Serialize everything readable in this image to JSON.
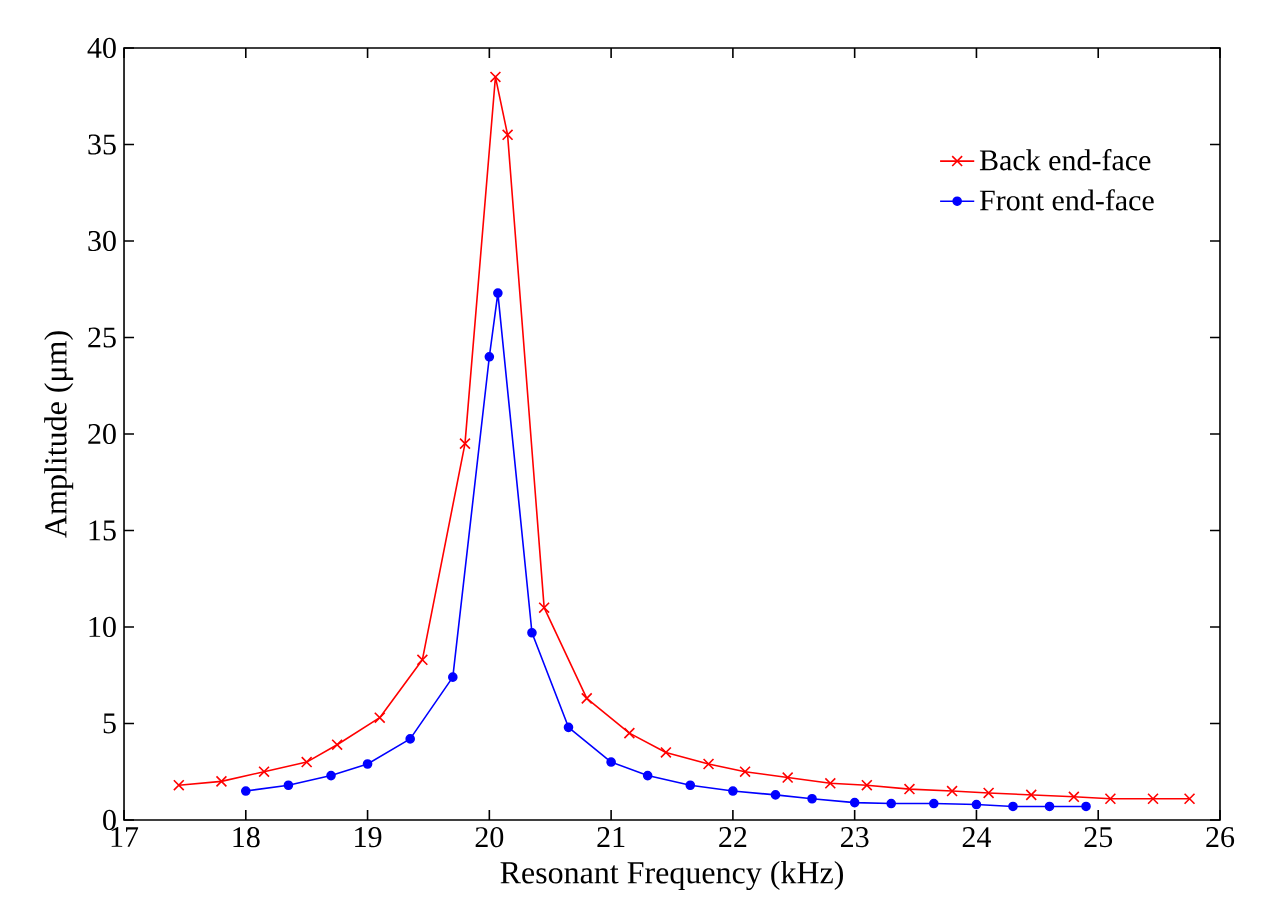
{
  "chart_data": {
    "type": "line",
    "xlabel": "Resonant Frequency (kHz)",
    "ylabel": "Amplitude (μm)",
    "xlim": [
      17,
      26
    ],
    "ylim": [
      0,
      40
    ],
    "xticks": [
      17,
      18,
      19,
      20,
      21,
      22,
      23,
      24,
      25,
      26
    ],
    "yticks": [
      0,
      5,
      10,
      15,
      20,
      25,
      30,
      35,
      40
    ],
    "grid": false,
    "legend": "top right",
    "series": [
      {
        "name": "Back end-face",
        "color": "#ff0000",
        "marker": "cross",
        "x": [
          17.45,
          17.8,
          18.15,
          18.5,
          18.75,
          19.1,
          19.45,
          19.8,
          20.05,
          20.15,
          20.45,
          20.8,
          21.15,
          21.45,
          21.8,
          22.1,
          22.45,
          22.8,
          23.1,
          23.45,
          23.8,
          24.1,
          24.45,
          24.8,
          25.1,
          25.45,
          25.75
        ],
        "values": [
          1.8,
          2.0,
          2.5,
          3.0,
          3.9,
          5.3,
          8.3,
          19.5,
          38.5,
          35.5,
          11,
          6.3,
          4.5,
          3.5,
          2.9,
          2.5,
          2.2,
          1.9,
          1.8,
          1.6,
          1.5,
          1.4,
          1.3,
          1.2,
          1.1,
          1.1,
          1.1
        ]
      },
      {
        "name": "Front end-face",
        "color": "#0000ff",
        "marker": "circle",
        "x": [
          18.0,
          18.35,
          18.7,
          19.0,
          19.35,
          19.7,
          20.0,
          20.07,
          20.35,
          20.65,
          21.0,
          21.3,
          21.65,
          22.0,
          22.35,
          22.65,
          23.0,
          23.3,
          23.65,
          24.0,
          24.3,
          24.6,
          24.9
        ],
        "values": [
          1.5,
          1.8,
          2.3,
          2.9,
          4.2,
          7.4,
          24,
          27.3,
          9.7,
          4.8,
          3.0,
          2.3,
          1.8,
          1.5,
          1.3,
          1.1,
          0.9,
          0.85,
          0.85,
          0.8,
          0.7,
          0.7,
          0.7
        ]
      }
    ]
  }
}
